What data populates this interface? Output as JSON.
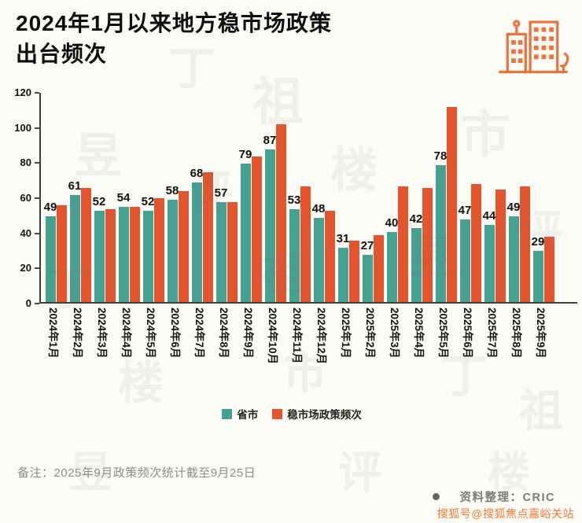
{
  "title": {
    "line1": "2024年1月以来地方稳市场政策",
    "line2": "出台频次"
  },
  "chart_data": {
    "type": "bar",
    "title": "2024年1月以来地方稳市场政策出台频次",
    "categories": [
      "2024年1月",
      "2024年2月",
      "2024年3月",
      "2024年4月",
      "2024年5月",
      "2024年6月",
      "2024年7月",
      "2024年8月",
      "2024年9月",
      "2024年10月",
      "2024年11月",
      "2024年12月",
      "2025年1月",
      "2025年2月",
      "2025年3月",
      "2025年4月",
      "2025年5月",
      "2025年6月",
      "2025年7月",
      "2025年8月",
      "2025年9月"
    ],
    "series": [
      {
        "name": "省市",
        "color": "#47a191",
        "values": [
          49,
          61,
          52,
          54,
          52,
          58,
          68,
          57,
          79,
          87,
          53,
          48,
          31,
          27,
          40,
          42,
          78,
          47,
          44,
          49,
          29
        ]
      },
      {
        "name": "稳市场政策频次",
        "color": "#e2552e",
        "values": [
          55,
          65,
          53,
          54,
          59,
          63,
          74,
          57,
          83,
          101,
          66,
          52,
          35,
          38,
          66,
          65,
          111,
          67,
          64,
          66,
          37
        ]
      }
    ],
    "ylim": [
      0,
      120
    ],
    "yticks": [
      0,
      20,
      40,
      60,
      80,
      100,
      120
    ],
    "grid": false,
    "legend_position": "bottom",
    "data_labels": "only 省市 series labeled above teal bars"
  },
  "colors": {
    "teal": "#47a191",
    "orange": "#e2552e",
    "icon_orange": "#ea7440",
    "sohu_orange": "#ee7a38",
    "background": "#fcfbf6"
  },
  "icons": {
    "buildings": "buildings-icon",
    "source_bullet": "bullet-dot-icon"
  },
  "footer": {
    "note": "备注：2025年9月政策频次统计截至9月25日",
    "source": "资料整理：CRIC",
    "sohu": "搜狐号@搜狐焦点嘉峪关站"
  },
  "watermark": {
    "text": "丁祖昱评楼市"
  }
}
